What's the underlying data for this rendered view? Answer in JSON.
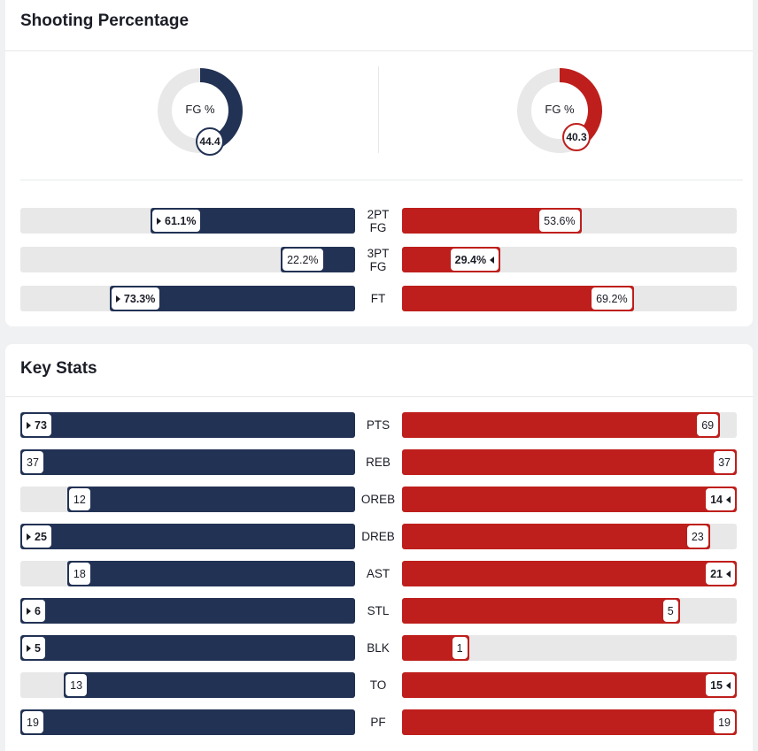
{
  "shooting": {
    "title": "Shooting Percentage",
    "fg_label": "FG %",
    "away_fg": "44.4",
    "home_fg": "40.3",
    "away_fg_value": 44.4,
    "home_fg_value": 40.3,
    "rows": [
      {
        "label_line1": "2PT",
        "label_line2": "FG",
        "away": "61.1%",
        "home": "53.6%",
        "away_value": 61.1,
        "home_value": 53.6,
        "leader": "away"
      },
      {
        "label_line1": "3PT",
        "label_line2": "FG",
        "away": "22.2%",
        "home": "29.4%",
        "away_value": 22.2,
        "home_value": 29.4,
        "leader": "home"
      },
      {
        "label_line1": "FT",
        "label_line2": "",
        "away": "73.3%",
        "home": "69.2%",
        "away_value": 73.3,
        "home_value": 69.2,
        "leader": "away"
      }
    ]
  },
  "key_stats": {
    "title": "Key Stats",
    "rows": [
      {
        "label": "PTS",
        "away": "73",
        "home": "69",
        "away_share": 1.0,
        "home_share": 0.95,
        "leader": "away"
      },
      {
        "label": "REB",
        "away": "37",
        "home": "37",
        "away_share": 1.0,
        "home_share": 1.0,
        "leader": "none"
      },
      {
        "label": "OREB",
        "away": "12",
        "home": "14",
        "away_share": 0.86,
        "home_share": 1.0,
        "leader": "home"
      },
      {
        "label": "DREB",
        "away": "25",
        "home": "23",
        "away_share": 1.0,
        "home_share": 0.92,
        "leader": "away"
      },
      {
        "label": "AST",
        "away": "18",
        "home": "21",
        "away_share": 0.86,
        "home_share": 1.0,
        "leader": "home"
      },
      {
        "label": "STL",
        "away": "6",
        "home": "5",
        "away_share": 1.0,
        "home_share": 0.83,
        "leader": "away"
      },
      {
        "label": "BLK",
        "away": "5",
        "home": "1",
        "away_share": 1.0,
        "home_share": 0.2,
        "leader": "away"
      },
      {
        "label": "TO",
        "away": "13",
        "home": "15",
        "away_share": 0.87,
        "home_share": 1.0,
        "leader": "home"
      },
      {
        "label": "PF",
        "away": "19",
        "home": "19",
        "away_share": 1.0,
        "home_share": 1.0,
        "leader": "none"
      }
    ]
  },
  "colors": {
    "away": "#223254",
    "home": "#be1f1c",
    "track": "#e8e8e9",
    "ring_track": "#e8e8e9",
    "leader_indicator_icon": "triangle-icon"
  }
}
